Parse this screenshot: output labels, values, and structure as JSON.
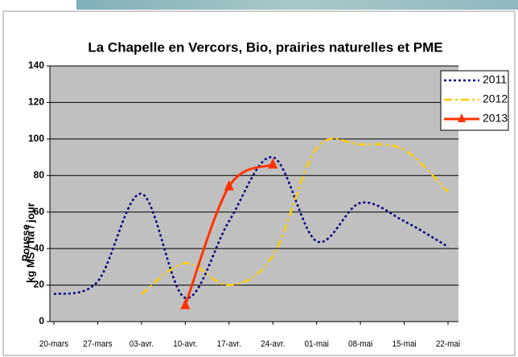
{
  "chart_data": {
    "type": "line",
    "title": "La Chapelle en Vercors, Bio, prairies naturelles et PME",
    "ylabel": [
      "Pousse",
      "kg MS / ha / jour"
    ],
    "categories": [
      "20-mars",
      "27-mars",
      "03-avr.",
      "10-avr.",
      "17-avr.",
      "24-avr.",
      "01-mai",
      "08-mai",
      "15-mai",
      "22-mai"
    ],
    "series": [
      {
        "name": "2011",
        "color": "#000080",
        "line_style": "dotted",
        "smooth": true,
        "values": [
          15,
          22,
          70,
          13,
          55,
          90,
          44,
          65,
          55,
          41
        ]
      },
      {
        "name": "2012",
        "color": "#ffcc00",
        "line_style": "dashdot",
        "smooth": true,
        "values": [
          null,
          null,
          15,
          32,
          20,
          36,
          95,
          97,
          94,
          71
        ]
      },
      {
        "name": "2013",
        "color": "#ff3300",
        "line_style": "solid",
        "marker": "triangle",
        "smooth": true,
        "values": [
          null,
          null,
          null,
          9,
          74,
          86,
          null,
          null,
          null,
          null
        ]
      }
    ],
    "ylim": [
      0,
      140
    ],
    "yticks": [
      0,
      20,
      40,
      60,
      80,
      100,
      120,
      140
    ],
    "grid": true,
    "plot_background": "#c0c0c0",
    "legend": "upper right"
  }
}
